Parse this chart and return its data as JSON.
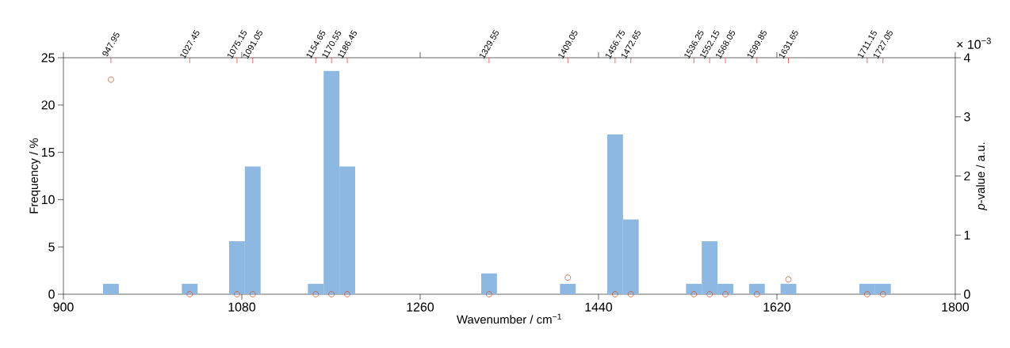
{
  "chart_data": {
    "type": "histogram",
    "xlabel": "Wavenumber / cm$^{−1}$",
    "ylabel": "Frequency / %",
    "y2label": "*p*-value / a.u.",
    "bins": [
      940,
      955.9,
      971.8,
      987.7,
      1003.6,
      1019.5,
      1035.4,
      1051.3,
      1067.2,
      1083.1,
      1099,
      1114.9,
      1130.8,
      1146.7,
      1162.6,
      1178.5,
      1194.4,
      1210.3,
      1226.2,
      1242.1,
      1258,
      1273.9,
      1289.8,
      1305.7,
      1321.6,
      1337.5,
      1353.4,
      1369.3,
      1385.2,
      1401.1,
      1417,
      1432.9,
      1448.8,
      1464.7,
      1480.6,
      1496.5,
      1512.4,
      1528.3,
      1544.2,
      1560.1,
      1576,
      1591.9,
      1607.8,
      1623.7,
      1639.6,
      1655.5,
      1671.4,
      1687.3,
      1703.2,
      1719.1,
      1735
    ],
    "values": [
      1.1,
      0,
      0,
      0,
      0,
      1.1,
      0,
      0,
      5.6,
      13.5,
      0,
      0,
      0,
      1.1,
      23.6,
      13.5,
      0,
      0,
      0,
      0,
      0,
      0,
      0,
      0,
      2.2,
      0,
      0,
      0,
      0,
      1.1,
      0,
      0,
      16.9,
      7.9,
      0,
      0,
      0,
      1.1,
      5.6,
      1.1,
      0,
      1.1,
      0,
      1.1,
      0,
      0,
      0,
      0,
      1.1,
      1.1
    ],
    "color": "#8cb8e2",
    "series": [
      {
        "type": "scatter",
        "axis": "y2",
        "color": "#d9542b",
        "marker": "circle",
        "x": [
          947.95,
          1027.45,
          1075.15,
          1091.05,
          1154.65,
          1170.55,
          1186.45,
          1329.55,
          1409.05,
          1456.75,
          1472.65,
          1536.25,
          1552.15,
          1568.05,
          1599.85,
          1631.65,
          1711.15,
          1727.05
        ],
        "values": [
          3.63,
          0,
          0,
          0,
          0,
          0,
          0,
          0,
          0.28,
          0,
          0,
          0,
          0,
          0,
          0,
          0.25,
          0,
          0
        ]
      }
    ],
    "xlim": [
      900,
      1800
    ],
    "xticks": [
      900,
      1080,
      1260,
      1440,
      1620,
      1800
    ],
    "ylim": [
      0,
      25
    ],
    "yticks": [
      0,
      5,
      10,
      15,
      20,
      25
    ],
    "y2lim": [
      0,
      4
    ],
    "y2ticks": [
      0,
      1,
      2,
      3,
      4
    ],
    "x2lim": [
      900,
      1800
    ],
    "x2ticks": [
      947.95,
      1027.45,
      1075.15,
      1091.05,
      1154.65,
      1170.55,
      1186.45,
      1329.55,
      1409.05,
      1456.75,
      1472.65,
      1536.25,
      1552.15,
      1568.05,
      1599.85,
      1631.65,
      1711.15,
      1727.05
    ],
    "annotations": [
      "× 10$^{−3}$"
    ]
  }
}
